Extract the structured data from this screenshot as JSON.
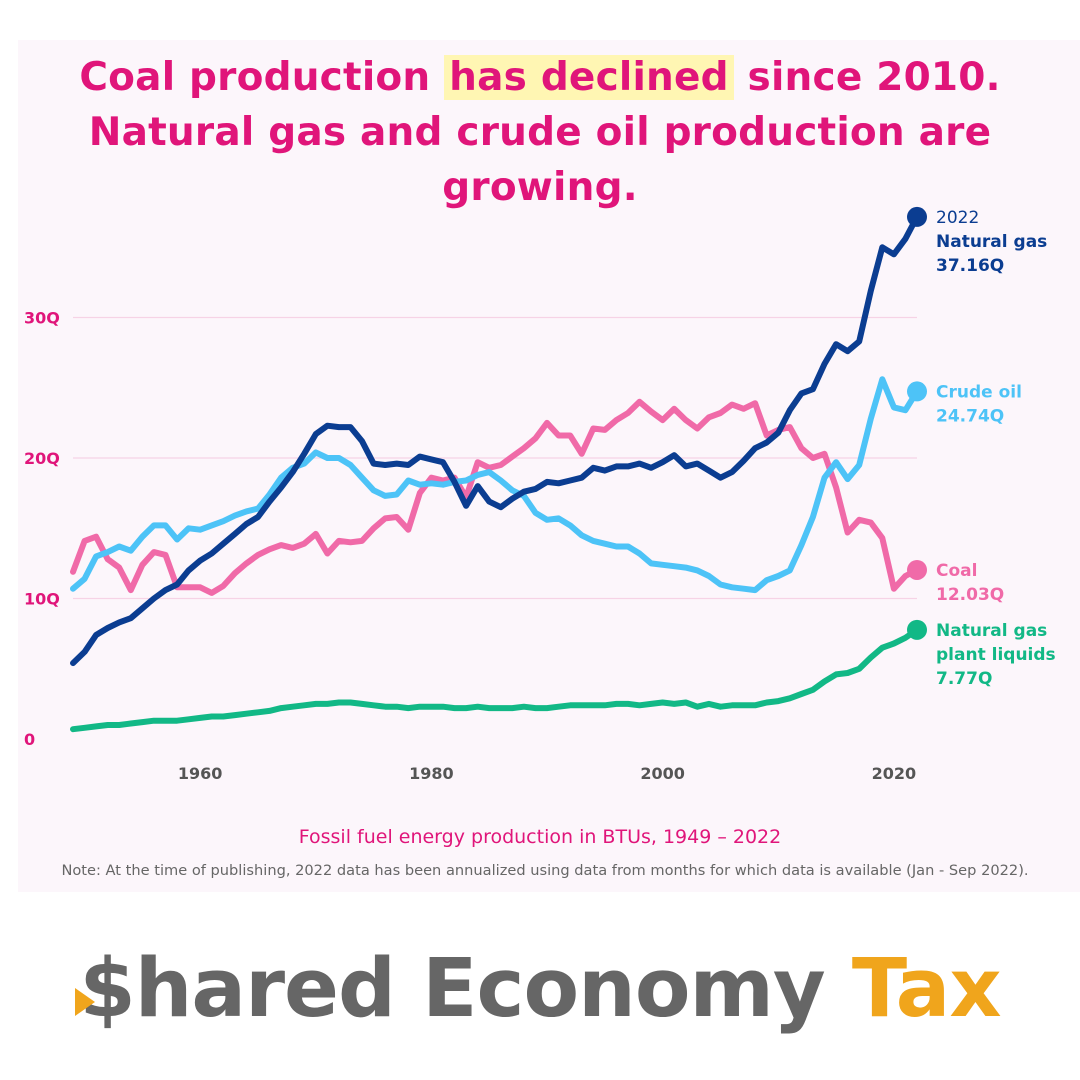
{
  "title": {
    "before": "Coal production ",
    "highlight": "has declined",
    "after": " since 2010. Natural gas and crude oil production are growing."
  },
  "caption": "Fossil fuel energy production in BTUs, 1949 – 2022",
  "note": "Note: At the time of publishing, 2022 data has been annualized using data from months for which data is available (Jan - Sep 2022).",
  "brand": {
    "dollar": "$",
    "word1": "hared Economy ",
    "word2": "Tax",
    "colors": {
      "gray": "#666666",
      "gold": "#f0a51c"
    }
  },
  "chart_data": {
    "type": "line",
    "xlabel": "",
    "ylabel": "",
    "xlim": [
      1949,
      2022
    ],
    "ylim": [
      0,
      40
    ],
    "x_ticks": [
      1960,
      1980,
      2000,
      2020
    ],
    "y_ticks": [
      0,
      10,
      20,
      30
    ],
    "y_tick_labels": [
      "0",
      "10Q",
      "20Q",
      "30Q"
    ],
    "grid": true,
    "end_label_year": "2022",
    "series": [
      {
        "name": "Natural gas",
        "end_value": "37.16Q",
        "color": "#0b3d91",
        "points": [
          [
            1949,
            5.4
          ],
          [
            1950,
            6.2
          ],
          [
            1951,
            7.4
          ],
          [
            1952,
            7.9
          ],
          [
            1953,
            8.3
          ],
          [
            1954,
            8.6
          ],
          [
            1955,
            9.3
          ],
          [
            1956,
            10.0
          ],
          [
            1957,
            10.6
          ],
          [
            1958,
            11.0
          ],
          [
            1959,
            12.0
          ],
          [
            1960,
            12.7
          ],
          [
            1961,
            13.2
          ],
          [
            1962,
            13.9
          ],
          [
            1963,
            14.6
          ],
          [
            1964,
            15.3
          ],
          [
            1965,
            15.8
          ],
          [
            1966,
            16.9
          ],
          [
            1967,
            17.9
          ],
          [
            1968,
            19.0
          ],
          [
            1969,
            20.3
          ],
          [
            1970,
            21.7
          ],
          [
            1971,
            22.3
          ],
          [
            1972,
            22.2
          ],
          [
            1973,
            22.2
          ],
          [
            1974,
            21.2
          ],
          [
            1975,
            19.6
          ],
          [
            1976,
            19.5
          ],
          [
            1977,
            19.6
          ],
          [
            1978,
            19.5
          ],
          [
            1979,
            20.1
          ],
          [
            1980,
            19.9
          ],
          [
            1981,
            19.7
          ],
          [
            1982,
            18.3
          ],
          [
            1983,
            16.6
          ],
          [
            1984,
            18.0
          ],
          [
            1985,
            16.9
          ],
          [
            1986,
            16.5
          ],
          [
            1987,
            17.1
          ],
          [
            1988,
            17.6
          ],
          [
            1989,
            17.8
          ],
          [
            1990,
            18.3
          ],
          [
            1991,
            18.2
          ],
          [
            1992,
            18.4
          ],
          [
            1993,
            18.6
          ],
          [
            1994,
            19.3
          ],
          [
            1995,
            19.1
          ],
          [
            1996,
            19.4
          ],
          [
            1997,
            19.4
          ],
          [
            1998,
            19.6
          ],
          [
            1999,
            19.3
          ],
          [
            2000,
            19.7
          ],
          [
            2001,
            20.2
          ],
          [
            2002,
            19.4
          ],
          [
            2003,
            19.6
          ],
          [
            2004,
            19.1
          ],
          [
            2005,
            18.6
          ],
          [
            2006,
            19.0
          ],
          [
            2007,
            19.8
          ],
          [
            2008,
            20.7
          ],
          [
            2009,
            21.1
          ],
          [
            2010,
            21.8
          ],
          [
            2011,
            23.4
          ],
          [
            2012,
            24.6
          ],
          [
            2013,
            24.9
          ],
          [
            2014,
            26.7
          ],
          [
            2015,
            28.1
          ],
          [
            2016,
            27.6
          ],
          [
            2017,
            28.3
          ],
          [
            2018,
            31.9
          ],
          [
            2019,
            35.0
          ],
          [
            2020,
            34.5
          ],
          [
            2021,
            35.6
          ],
          [
            2022,
            37.16
          ]
        ]
      },
      {
        "name": "Crude oil",
        "end_value": "24.74Q",
        "color": "#4dc3f7",
        "points": [
          [
            1949,
            10.7
          ],
          [
            1950,
            11.4
          ],
          [
            1951,
            13.0
          ],
          [
            1952,
            13.3
          ],
          [
            1953,
            13.7
          ],
          [
            1954,
            13.4
          ],
          [
            1955,
            14.4
          ],
          [
            1956,
            15.2
          ],
          [
            1957,
            15.2
          ],
          [
            1958,
            14.2
          ],
          [
            1959,
            15.0
          ],
          [
            1960,
            14.9
          ],
          [
            1961,
            15.2
          ],
          [
            1962,
            15.5
          ],
          [
            1963,
            15.9
          ],
          [
            1964,
            16.2
          ],
          [
            1965,
            16.4
          ],
          [
            1966,
            17.4
          ],
          [
            1967,
            18.6
          ],
          [
            1968,
            19.3
          ],
          [
            1969,
            19.6
          ],
          [
            1970,
            20.4
          ],
          [
            1971,
            20.0
          ],
          [
            1972,
            20.0
          ],
          [
            1973,
            19.5
          ],
          [
            1974,
            18.6
          ],
          [
            1975,
            17.7
          ],
          [
            1976,
            17.3
          ],
          [
            1977,
            17.4
          ],
          [
            1978,
            18.4
          ],
          [
            1979,
            18.1
          ],
          [
            1980,
            18.2
          ],
          [
            1981,
            18.1
          ],
          [
            1982,
            18.3
          ],
          [
            1983,
            18.4
          ],
          [
            1984,
            18.8
          ],
          [
            1985,
            19.0
          ],
          [
            1986,
            18.4
          ],
          [
            1987,
            17.7
          ],
          [
            1988,
            17.3
          ],
          [
            1989,
            16.1
          ],
          [
            1990,
            15.6
          ],
          [
            1991,
            15.7
          ],
          [
            1992,
            15.2
          ],
          [
            1993,
            14.5
          ],
          [
            1994,
            14.1
          ],
          [
            1995,
            13.9
          ],
          [
            1996,
            13.7
          ],
          [
            1997,
            13.7
          ],
          [
            1998,
            13.2
          ],
          [
            1999,
            12.5
          ],
          [
            2000,
            12.4
          ],
          [
            2001,
            12.3
          ],
          [
            2002,
            12.2
          ],
          [
            2003,
            12.0
          ],
          [
            2004,
            11.6
          ],
          [
            2005,
            11.0
          ],
          [
            2006,
            10.8
          ],
          [
            2007,
            10.7
          ],
          [
            2008,
            10.6
          ],
          [
            2009,
            11.3
          ],
          [
            2010,
            11.6
          ],
          [
            2011,
            12.0
          ],
          [
            2012,
            13.8
          ],
          [
            2013,
            15.8
          ],
          [
            2014,
            18.6
          ],
          [
            2015,
            19.7
          ],
          [
            2016,
            18.5
          ],
          [
            2017,
            19.5
          ],
          [
            2018,
            22.8
          ],
          [
            2019,
            25.6
          ],
          [
            2020,
            23.6
          ],
          [
            2021,
            23.4
          ],
          [
            2022,
            24.74
          ]
        ]
      },
      {
        "name": "Coal",
        "end_value": "12.03Q",
        "color": "#f06aa8",
        "points": [
          [
            1949,
            11.9
          ],
          [
            1950,
            14.1
          ],
          [
            1951,
            14.4
          ],
          [
            1952,
            12.8
          ],
          [
            1953,
            12.2
          ],
          [
            1954,
            10.6
          ],
          [
            1955,
            12.4
          ],
          [
            1956,
            13.3
          ],
          [
            1957,
            13.1
          ],
          [
            1958,
            10.8
          ],
          [
            1959,
            10.8
          ],
          [
            1960,
            10.8
          ],
          [
            1961,
            10.4
          ],
          [
            1962,
            10.9
          ],
          [
            1963,
            11.8
          ],
          [
            1964,
            12.5
          ],
          [
            1965,
            13.1
          ],
          [
            1966,
            13.5
          ],
          [
            1967,
            13.8
          ],
          [
            1968,
            13.6
          ],
          [
            1969,
            13.9
          ],
          [
            1970,
            14.6
          ],
          [
            1971,
            13.2
          ],
          [
            1972,
            14.1
          ],
          [
            1973,
            14.0
          ],
          [
            1974,
            14.1
          ],
          [
            1975,
            15.0
          ],
          [
            1976,
            15.7
          ],
          [
            1977,
            15.8
          ],
          [
            1978,
            14.9
          ],
          [
            1979,
            17.5
          ],
          [
            1980,
            18.6
          ],
          [
            1981,
            18.4
          ],
          [
            1982,
            18.6
          ],
          [
            1983,
            17.2
          ],
          [
            1984,
            19.7
          ],
          [
            1985,
            19.3
          ],
          [
            1986,
            19.5
          ],
          [
            1987,
            20.1
          ],
          [
            1988,
            20.7
          ],
          [
            1989,
            21.4
          ],
          [
            1990,
            22.5
          ],
          [
            1991,
            21.6
          ],
          [
            1992,
            21.6
          ],
          [
            1993,
            20.3
          ],
          [
            1994,
            22.1
          ],
          [
            1995,
            22.0
          ],
          [
            1996,
            22.7
          ],
          [
            1997,
            23.2
          ],
          [
            1998,
            24.0
          ],
          [
            1999,
            23.3
          ],
          [
            2000,
            22.7
          ],
          [
            2001,
            23.5
          ],
          [
            2002,
            22.7
          ],
          [
            2003,
            22.1
          ],
          [
            2004,
            22.9
          ],
          [
            2005,
            23.2
          ],
          [
            2006,
            23.8
          ],
          [
            2007,
            23.5
          ],
          [
            2008,
            23.9
          ],
          [
            2009,
            21.6
          ],
          [
            2010,
            22.0
          ],
          [
            2011,
            22.2
          ],
          [
            2012,
            20.7
          ],
          [
            2013,
            20.0
          ],
          [
            2014,
            20.3
          ],
          [
            2015,
            17.9
          ],
          [
            2016,
            14.7
          ],
          [
            2017,
            15.6
          ],
          [
            2018,
            15.4
          ],
          [
            2019,
            14.3
          ],
          [
            2020,
            10.7
          ],
          [
            2021,
            11.6
          ],
          [
            2022,
            12.03
          ]
        ]
      },
      {
        "name": "Natural gas plant liquids",
        "end_value": "7.77Q",
        "color": "#12b886",
        "points": [
          [
            1949,
            0.7
          ],
          [
            1950,
            0.8
          ],
          [
            1951,
            0.9
          ],
          [
            1952,
            1.0
          ],
          [
            1953,
            1.0
          ],
          [
            1954,
            1.1
          ],
          [
            1955,
            1.2
          ],
          [
            1956,
            1.3
          ],
          [
            1957,
            1.3
          ],
          [
            1958,
            1.3
          ],
          [
            1959,
            1.4
          ],
          [
            1960,
            1.5
          ],
          [
            1961,
            1.6
          ],
          [
            1962,
            1.6
          ],
          [
            1963,
            1.7
          ],
          [
            1964,
            1.8
          ],
          [
            1965,
            1.9
          ],
          [
            1966,
            2.0
          ],
          [
            1967,
            2.2
          ],
          [
            1968,
            2.3
          ],
          [
            1969,
            2.4
          ],
          [
            1970,
            2.5
          ],
          [
            1971,
            2.5
          ],
          [
            1972,
            2.6
          ],
          [
            1973,
            2.6
          ],
          [
            1974,
            2.5
          ],
          [
            1975,
            2.4
          ],
          [
            1976,
            2.3
          ],
          [
            1977,
            2.3
          ],
          [
            1978,
            2.2
          ],
          [
            1979,
            2.3
          ],
          [
            1980,
            2.3
          ],
          [
            1981,
            2.3
          ],
          [
            1982,
            2.2
          ],
          [
            1983,
            2.2
          ],
          [
            1984,
            2.3
          ],
          [
            1985,
            2.2
          ],
          [
            1986,
            2.2
          ],
          [
            1987,
            2.2
          ],
          [
            1988,
            2.3
          ],
          [
            1989,
            2.2
          ],
          [
            1990,
            2.2
          ],
          [
            1991,
            2.3
          ],
          [
            1992,
            2.4
          ],
          [
            1993,
            2.4
          ],
          [
            1994,
            2.4
          ],
          [
            1995,
            2.4
          ],
          [
            1996,
            2.5
          ],
          [
            1997,
            2.5
          ],
          [
            1998,
            2.4
          ],
          [
            1999,
            2.5
          ],
          [
            2000,
            2.6
          ],
          [
            2001,
            2.5
          ],
          [
            2002,
            2.6
          ],
          [
            2003,
            2.3
          ],
          [
            2004,
            2.5
          ],
          [
            2005,
            2.3
          ],
          [
            2006,
            2.4
          ],
          [
            2007,
            2.4
          ],
          [
            2008,
            2.4
          ],
          [
            2009,
            2.6
          ],
          [
            2010,
            2.7
          ],
          [
            2011,
            2.9
          ],
          [
            2012,
            3.2
          ],
          [
            2013,
            3.5
          ],
          [
            2014,
            4.1
          ],
          [
            2015,
            4.6
          ],
          [
            2016,
            4.7
          ],
          [
            2017,
            5.0
          ],
          [
            2018,
            5.8
          ],
          [
            2019,
            6.5
          ],
          [
            2020,
            6.8
          ],
          [
            2021,
            7.2
          ],
          [
            2022,
            7.77
          ]
        ]
      }
    ]
  }
}
